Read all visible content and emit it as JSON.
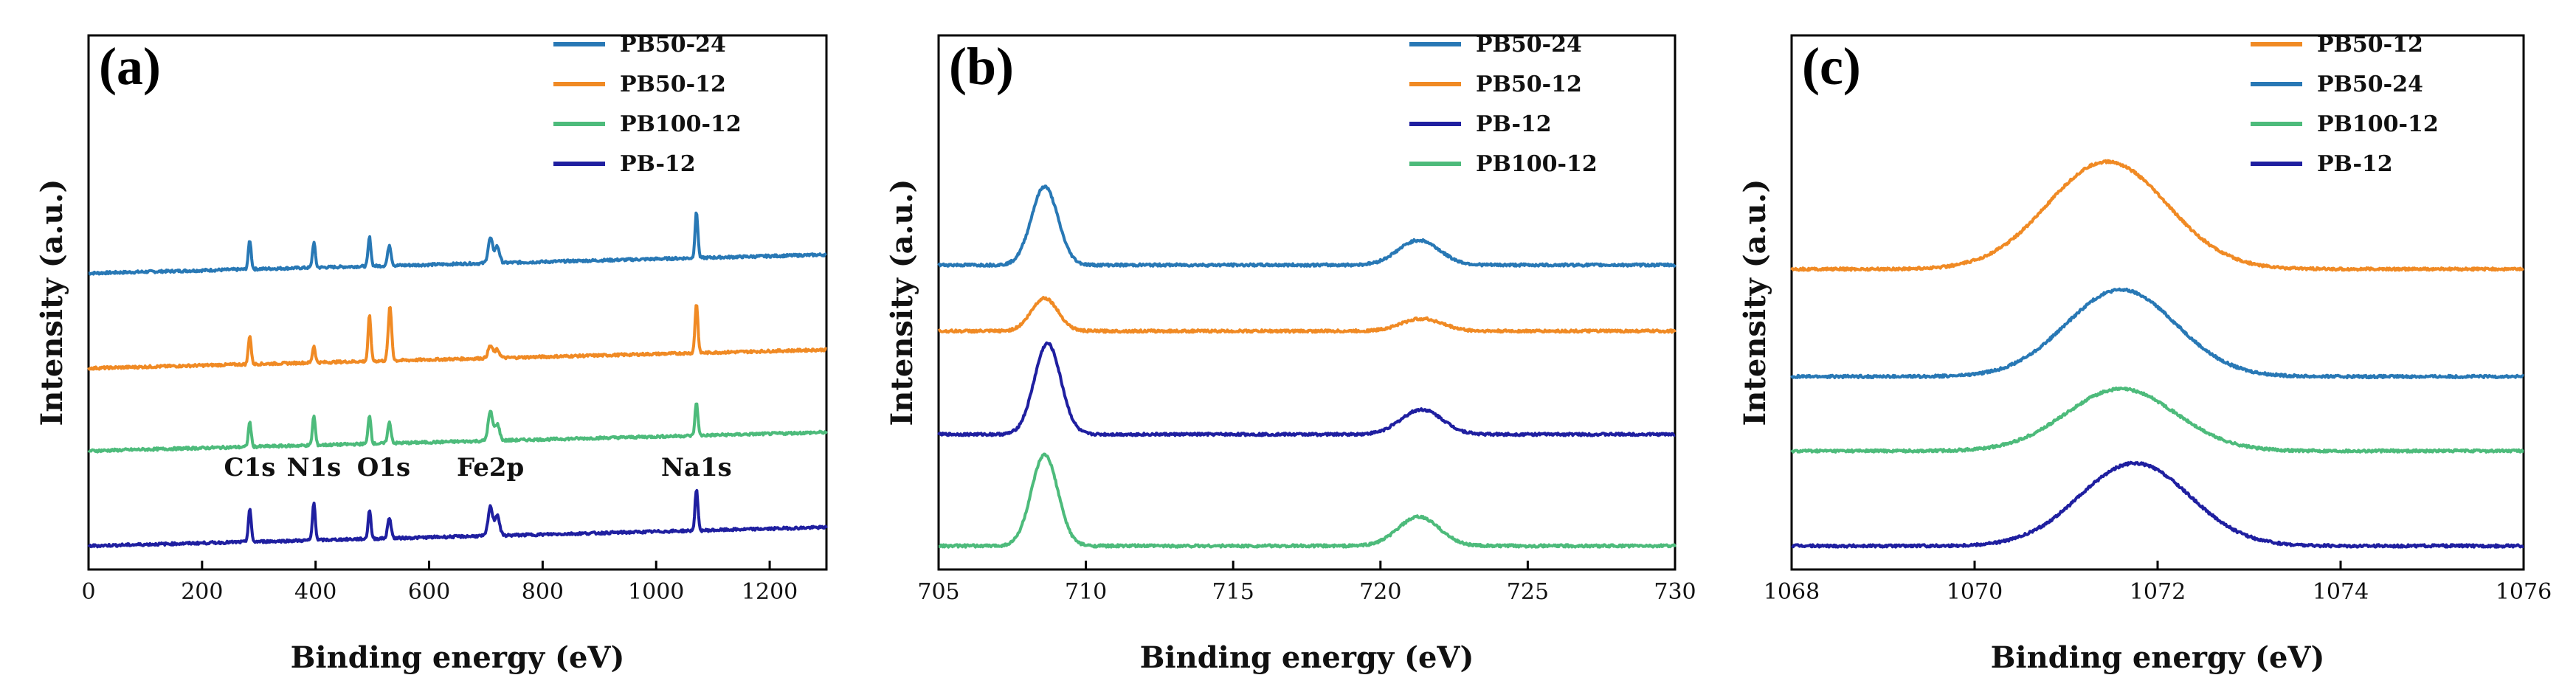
{
  "chart_data": [
    {
      "type": "line",
      "panel_label": "(a)",
      "xlabel": "Binding energy (eV)",
      "ylabel": "Intensity (a.u.)",
      "xlim": [
        0,
        1300
      ],
      "xticks": [
        0,
        200,
        400,
        600,
        800,
        1000,
        1200
      ],
      "yticks_shown": false,
      "legend_position": "top-right",
      "series": [
        {
          "name": "PB50-24",
          "color": "#2878b5",
          "offset": 0.66,
          "peaks": [
            [
              284,
              0.07,
              2.5
            ],
            [
              397,
              0.06,
              2.5
            ],
            [
              495,
              0.07,
              2.5
            ],
            [
              530,
              0.05,
              3
            ],
            [
              708,
              0.06,
              4
            ],
            [
              720,
              0.04,
              4
            ],
            [
              1071,
              0.11,
              2.5
            ]
          ]
        },
        {
          "name": "PB50-12",
          "color": "#f08a24",
          "offset": 0.43,
          "peaks": [
            [
              284,
              0.07,
              2.5
            ],
            [
              397,
              0.04,
              2.5
            ],
            [
              495,
              0.11,
              2.5
            ],
            [
              531,
              0.13,
              3
            ],
            [
              708,
              0.03,
              4
            ],
            [
              720,
              0.02,
              4
            ],
            [
              1071,
              0.12,
              2.5
            ]
          ]
        },
        {
          "name": "PB100-12",
          "color": "#4dbb7b",
          "offset": 0.23,
          "peaks": [
            [
              284,
              0.06,
              2.5
            ],
            [
              397,
              0.07,
              2.5
            ],
            [
              495,
              0.07,
              2.5
            ],
            [
              530,
              0.05,
              3
            ],
            [
              708,
              0.07,
              4
            ],
            [
              720,
              0.04,
              4
            ],
            [
              1071,
              0.08,
              2.5
            ]
          ]
        },
        {
          "name": "PB-12",
          "color": "#1f1fa0",
          "offset": 0.0,
          "peaks": [
            [
              284,
              0.08,
              2.5
            ],
            [
              397,
              0.09,
              2.5
            ],
            [
              495,
              0.07,
              2.5
            ],
            [
              530,
              0.05,
              3
            ],
            [
              708,
              0.07,
              4
            ],
            [
              720,
              0.05,
              4
            ],
            [
              1071,
              0.1,
              2.5
            ]
          ]
        }
      ],
      "annotations": [
        {
          "text": "C1s",
          "x": 284
        },
        {
          "text": "N1s",
          "x": 397
        },
        {
          "text": "O1s",
          "x": 520
        },
        {
          "text": "Fe2p",
          "x": 708
        },
        {
          "text": "Na1s",
          "x": 1071
        }
      ]
    },
    {
      "type": "line",
      "panel_label": "(b)",
      "xlabel": "Binding energy (eV)",
      "ylabel": "Intensity (a.u.)",
      "xlim": [
        705,
        730
      ],
      "xticks": [
        705,
        710,
        715,
        720,
        725,
        730
      ],
      "yticks_shown": false,
      "legend_position": "top-right",
      "series": [
        {
          "name": "PB50-24",
          "color": "#2878b5",
          "offset": 0.68,
          "peaks": [
            [
              708.6,
              0.19,
              0.45
            ],
            [
              721.3,
              0.06,
              0.7
            ]
          ]
        },
        {
          "name": "PB50-12",
          "color": "#f08a24",
          "offset": 0.52,
          "peaks": [
            [
              708.6,
              0.08,
              0.45
            ],
            [
              721.4,
              0.03,
              0.7
            ]
          ]
        },
        {
          "name": "PB-12",
          "color": "#1f1fa0",
          "offset": 0.27,
          "peaks": [
            [
              708.7,
              0.22,
              0.45
            ],
            [
              721.4,
              0.06,
              0.7
            ]
          ]
        },
        {
          "name": "PB100-12",
          "color": "#4dbb7b",
          "offset": 0.0,
          "peaks": [
            [
              708.6,
              0.22,
              0.45
            ],
            [
              721.3,
              0.07,
              0.7
            ]
          ]
        }
      ]
    },
    {
      "type": "line",
      "panel_label": "(c)",
      "xlabel": "Binding energy (eV)",
      "ylabel": "Intensity (a.u.)",
      "xlim": [
        1068,
        1076
      ],
      "xticks": [
        1068,
        1070,
        1072,
        1074,
        1076
      ],
      "yticks_shown": false,
      "legend_position": "top-right",
      "series": [
        {
          "name": "PB50-12",
          "color": "#f08a24",
          "offset": 0.67,
          "peaks": [
            [
              1071.45,
              0.26,
              0.65
            ]
          ]
        },
        {
          "name": "PB50-24",
          "color": "#2878b5",
          "offset": 0.41,
          "peaks": [
            [
              1071.6,
              0.21,
              0.6
            ]
          ]
        },
        {
          "name": "PB100-12",
          "color": "#4dbb7b",
          "offset": 0.23,
          "peaks": [
            [
              1071.6,
              0.15,
              0.6
            ]
          ]
        },
        {
          "name": "PB-12",
          "color": "#1f1fa0",
          "offset": 0.0,
          "peaks": [
            [
              1071.75,
              0.2,
              0.6
            ]
          ]
        }
      ]
    }
  ]
}
